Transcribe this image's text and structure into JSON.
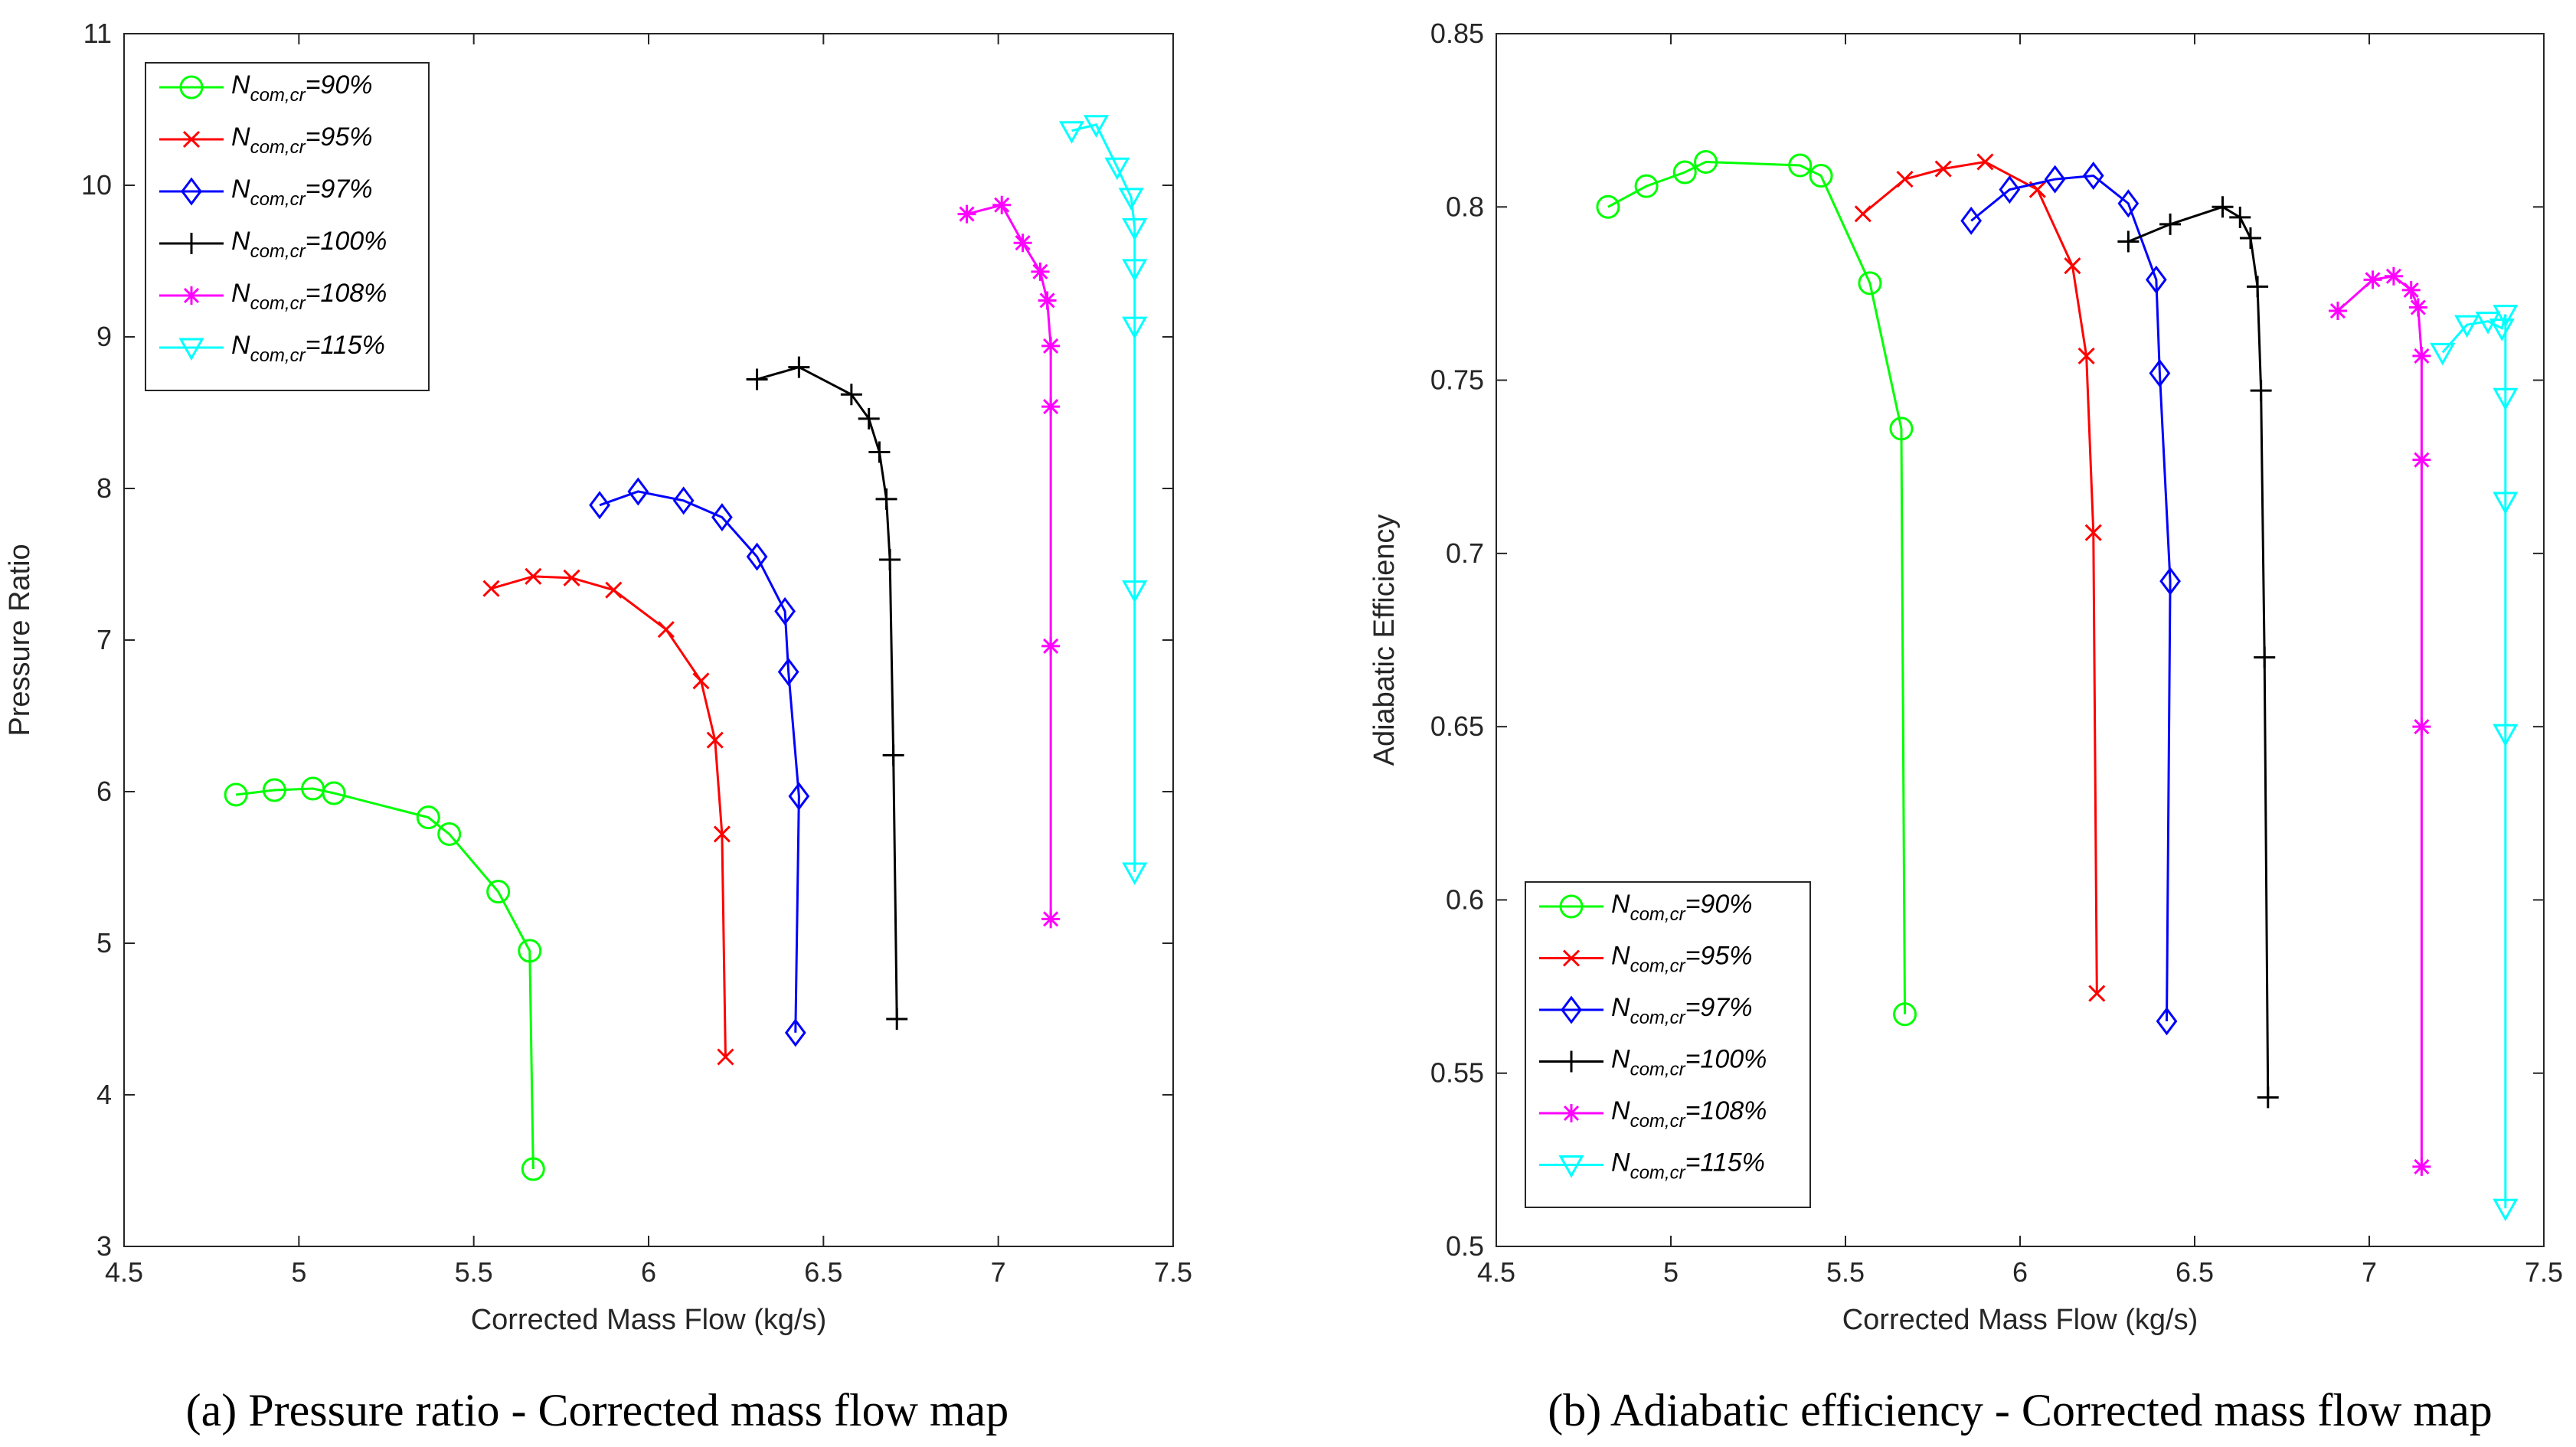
{
  "chart_data": [
    {
      "type": "line",
      "caption": "(a) Pressure ratio - Corrected mass flow map",
      "xlabel": "Corrected Mass Flow (kg/s)",
      "ylabel": "Pressure Ratio",
      "xlim": [
        4.5,
        7.5
      ],
      "ylim": [
        3,
        11
      ],
      "xticks": [
        "4.5",
        "5",
        "5.5",
        "6",
        "6.5",
        "7",
        "7.5"
      ],
      "yticks": [
        "3",
        "4",
        "5",
        "6",
        "7",
        "8",
        "9",
        "10",
        "11"
      ],
      "legend_position": "top-left",
      "series": [
        {
          "name": "N",
          "sub": "com,cr",
          "suffix": "=90%",
          "color": "#00ff00",
          "marker": "circle",
          "x": [
            4.82,
            4.93,
            5.04,
            5.1,
            5.37,
            5.43,
            5.57,
            5.66,
            5.67
          ],
          "y": [
            5.98,
            6.01,
            6.02,
            5.99,
            5.83,
            5.72,
            5.34,
            4.95,
            3.51
          ]
        },
        {
          "name": "N",
          "sub": "com,cr",
          "suffix": "=95%",
          "color": "#ff0000",
          "marker": "x",
          "x": [
            5.55,
            5.67,
            5.78,
            5.9,
            6.05,
            6.15,
            6.19,
            6.21,
            6.22
          ],
          "y": [
            7.34,
            7.42,
            7.41,
            7.33,
            7.07,
            6.73,
            6.34,
            5.72,
            4.25
          ]
        },
        {
          "name": "N",
          "sub": "com,cr",
          "suffix": "=97%",
          "color": "#0000ff",
          "marker": "diamond",
          "x": [
            5.86,
            5.97,
            6.1,
            6.21,
            6.31,
            6.39,
            6.4,
            6.43,
            6.42
          ],
          "y": [
            7.89,
            7.98,
            7.92,
            7.81,
            7.55,
            7.19,
            6.79,
            5.97,
            4.41
          ]
        },
        {
          "name": "N",
          "sub": "com,cr",
          "suffix": "=100%",
          "color": "#000000",
          "marker": "plus",
          "x": [
            6.31,
            6.43,
            6.58,
            6.63,
            6.66,
            6.68,
            6.69,
            6.7,
            6.71
          ],
          "y": [
            8.72,
            8.8,
            8.62,
            8.46,
            8.24,
            7.93,
            7.53,
            6.24,
            4.5
          ]
        },
        {
          "name": "N",
          "sub": "com,cr",
          "suffix": "=108%",
          "color": "#ff00ff",
          "marker": "star",
          "x": [
            6.91,
            7.01,
            7.07,
            7.12,
            7.14,
            7.15,
            7.15,
            7.15,
            7.15
          ],
          "y": [
            9.81,
            9.87,
            9.62,
            9.43,
            9.24,
            8.94,
            8.54,
            6.96,
            5.16
          ]
        },
        {
          "name": "N",
          "sub": "com,cr",
          "suffix": "=115%",
          "color": "#00ffff",
          "marker": "triangle-down",
          "x": [
            7.21,
            7.28,
            7.34,
            7.38,
            7.39,
            7.39,
            7.39,
            7.39,
            7.39
          ],
          "y": [
            10.36,
            10.4,
            10.12,
            9.92,
            9.72,
            9.45,
            9.07,
            7.33,
            5.47
          ]
        }
      ]
    },
    {
      "type": "line",
      "caption": "(b) Adiabatic efficiency - Corrected mass flow map",
      "xlabel": "Corrected Mass Flow (kg/s)",
      "ylabel": "Adiabatic Efficiency",
      "xlim": [
        4.5,
        7.5
      ],
      "ylim": [
        0.5,
        0.85
      ],
      "xticks": [
        "4.5",
        "5",
        "5.5",
        "6",
        "6.5",
        "7",
        "7.5"
      ],
      "yticks": [
        "0.5",
        "0.55",
        "0.6",
        "0.65",
        "0.7",
        "0.75",
        "0.8",
        "0.85"
      ],
      "legend_position": "bottom-left",
      "series": [
        {
          "name": "N",
          "sub": "com,cr",
          "suffix": "=90%",
          "color": "#00ff00",
          "marker": "circle",
          "x": [
            4.82,
            4.93,
            5.04,
            5.1,
            5.37,
            5.43,
            5.57,
            5.66,
            5.67
          ],
          "y": [
            0.8,
            0.806,
            0.81,
            0.813,
            0.812,
            0.809,
            0.778,
            0.736,
            0.567
          ]
        },
        {
          "name": "N",
          "sub": "com,cr",
          "suffix": "=95%",
          "color": "#ff0000",
          "marker": "x",
          "x": [
            5.55,
            5.67,
            5.78,
            5.9,
            6.05,
            6.15,
            6.19,
            6.21,
            6.22
          ],
          "y": [
            0.798,
            0.808,
            0.811,
            0.813,
            0.805,
            0.783,
            0.757,
            0.706,
            0.573
          ]
        },
        {
          "name": "N",
          "sub": "com,cr",
          "suffix": "=97%",
          "color": "#0000ff",
          "marker": "diamond",
          "x": [
            5.86,
            5.97,
            6.1,
            6.21,
            6.31,
            6.39,
            6.4,
            6.43,
            6.42
          ],
          "y": [
            0.796,
            0.805,
            0.808,
            0.809,
            0.801,
            0.779,
            0.752,
            0.692,
            0.565
          ]
        },
        {
          "name": "N",
          "sub": "com,cr",
          "suffix": "=100%",
          "color": "#000000",
          "marker": "plus",
          "x": [
            6.31,
            6.43,
            6.58,
            6.63,
            6.66,
            6.68,
            6.69,
            6.7,
            6.71
          ],
          "y": [
            0.79,
            0.795,
            0.8,
            0.797,
            0.791,
            0.777,
            0.747,
            0.67,
            0.543
          ]
        },
        {
          "name": "N",
          "sub": "com,cr",
          "suffix": "=108%",
          "color": "#ff00ff",
          "marker": "star",
          "x": [
            6.91,
            7.01,
            7.07,
            7.12,
            7.14,
            7.15,
            7.15,
            7.15,
            7.15
          ],
          "y": [
            0.77,
            0.779,
            0.78,
            0.776,
            0.771,
            0.757,
            0.727,
            0.65,
            0.523
          ]
        },
        {
          "name": "N",
          "sub": "com,cr",
          "suffix": "=115%",
          "color": "#00ffff",
          "marker": "triangle-down",
          "x": [
            7.21,
            7.28,
            7.34,
            7.38,
            7.39,
            7.39,
            7.39,
            7.39,
            7.39
          ],
          "y": [
            0.758,
            0.766,
            0.767,
            0.765,
            0.769,
            0.745,
            0.715,
            0.648,
            0.511
          ]
        }
      ]
    }
  ]
}
